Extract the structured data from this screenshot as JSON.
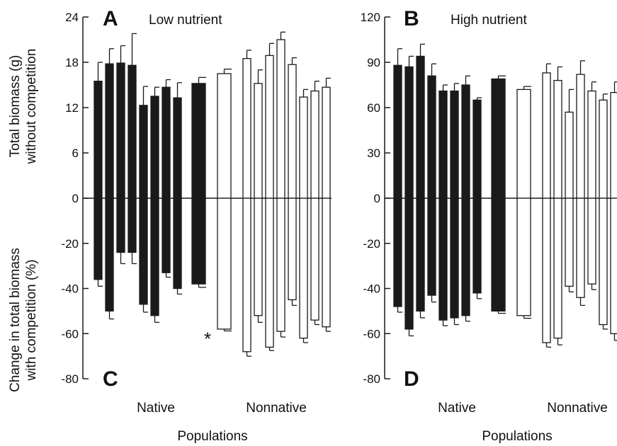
{
  "colors": {
    "native": "#1a1a1a",
    "nonnative": "#ffffff",
    "stroke": "#1a1a1a"
  },
  "y_label_top": [
    "Total biomass (g)",
    "without competition"
  ],
  "y_label_bottom": [
    "Change in total biomass",
    "with competition (%)"
  ],
  "x_label": "Populations",
  "group_labels": {
    "native": "Native",
    "nonnative": "Nonnative"
  },
  "chart_data": [
    {
      "type": "bar",
      "panel_top": "A",
      "panel_bottom": "C",
      "title": "Low nutrient",
      "top": {
        "ylabel": "Total biomass (g) without competition",
        "ylim": [
          0,
          24
        ],
        "yticks": [
          "0",
          "6",
          "12",
          "18",
          "24"
        ],
        "native_values": [
          15.5,
          17.8,
          17.9,
          17.6,
          12.3,
          13.5,
          14.7,
          13.3
        ],
        "native_errors": [
          2.5,
          2.0,
          2.3,
          4.2,
          2.5,
          1.2,
          1.0,
          2.0
        ],
        "native_mean": 15.2,
        "native_mean_error": 0.8,
        "nonnative_mean": 16.5,
        "nonnative_mean_error": 0.6,
        "nonnative_values": [
          18.5,
          15.2,
          18.9,
          21.0,
          17.7,
          13.4,
          14.2,
          14.7
        ],
        "nonnative_errors": [
          1.1,
          1.8,
          1.6,
          1.0,
          0.9,
          1.0,
          1.3,
          1.2
        ]
      },
      "bottom": {
        "ylabel": "Change in total biomass with competition (%)",
        "ylim": [
          -80,
          0
        ],
        "yticks": [
          "0",
          "-20",
          "-40",
          "-60",
          "-80"
        ],
        "native_values": [
          -36,
          -50,
          -24,
          -24,
          -47,
          -52,
          -33,
          -40
        ],
        "native_errors": [
          3,
          3.5,
          5,
          5,
          3.5,
          3,
          2,
          2.5
        ],
        "native_mean": -38,
        "native_mean_error": 1.5,
        "nonnative_mean": -58,
        "nonnative_mean_error": 0.8,
        "nonnative_values": [
          -68,
          -52,
          -66,
          -59,
          -45,
          -62,
          -54,
          -57
        ],
        "nonnative_errors": [
          2,
          3,
          1.5,
          2.5,
          2.5,
          2,
          2,
          2
        ],
        "annotation": "*"
      }
    },
    {
      "type": "bar",
      "panel_top": "B",
      "panel_bottom": "D",
      "title": "High nutrient",
      "top": {
        "ylabel": "Total biomass (g) without competition",
        "ylim": [
          0,
          120
        ],
        "yticks": [
          "0",
          "30",
          "60",
          "90",
          "120"
        ],
        "native_values": [
          88,
          87,
          94,
          81,
          71,
          71,
          75,
          65
        ],
        "native_errors": [
          11,
          7,
          8,
          8,
          4,
          5,
          6,
          1.5
        ],
        "native_mean": 79,
        "native_mean_error": 2,
        "nonnative_mean": 72,
        "nonnative_mean_error": 2,
        "nonnative_values": [
          83,
          78,
          57,
          82,
          71,
          65,
          70,
          65
        ],
        "nonnative_errors": [
          6,
          9,
          15,
          9,
          6,
          4,
          7,
          3
        ]
      },
      "bottom": {
        "ylabel": "Change in total biomass with competition (%)",
        "ylim": [
          -80,
          0
        ],
        "yticks": [
          "0",
          "-20",
          "-40",
          "-60",
          "-80"
        ],
        "native_values": [
          -48,
          -58,
          -50,
          -43,
          -54,
          -53,
          -52,
          -42
        ],
        "native_errors": [
          2.5,
          3,
          3,
          3,
          2.5,
          3,
          2.5,
          2.5
        ],
        "native_mean": -50,
        "native_mean_error": 1,
        "nonnative_mean": -52,
        "nonnative_mean_error": 1.2,
        "nonnative_values": [
          -64,
          -62,
          -39,
          -44,
          -38,
          -56,
          -60,
          -53
        ],
        "nonnative_errors": [
          2,
          3,
          2.5,
          3.5,
          2.5,
          2,
          3,
          2
        ]
      }
    }
  ]
}
